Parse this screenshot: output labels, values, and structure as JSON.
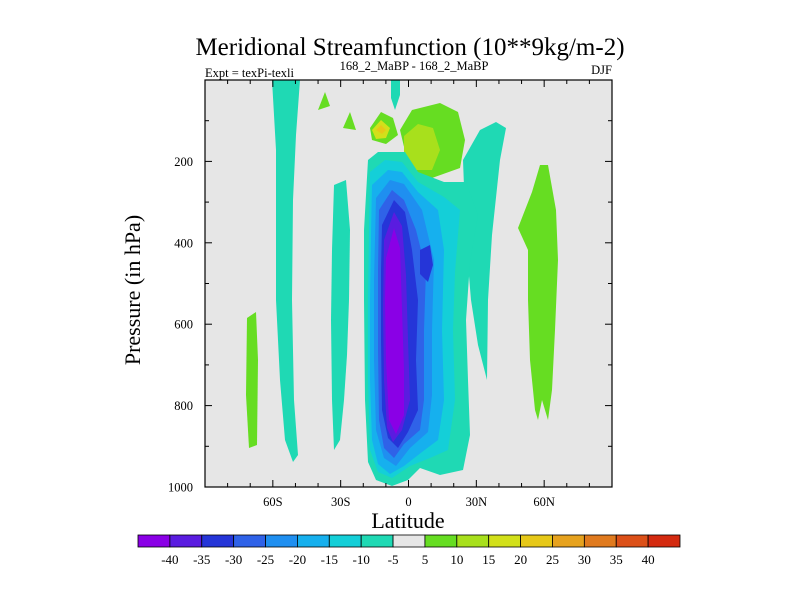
{
  "chart_data": {
    "type": "heatmap",
    "title": "Meridional Streamfunction (10**9kg/m-2)",
    "left_subtitle": "Expt = texPi-texli",
    "center_subtitle": "168_2_MaBP - 168_2_MaBP",
    "right_subtitle": "DJF",
    "xlabel": "Latitude",
    "ylabel": "Pressure (in hPa)",
    "xlim": [
      -90,
      90
    ],
    "ylim": [
      1000,
      0
    ],
    "x_ticks": [
      {
        "value": -60,
        "label": "60S"
      },
      {
        "value": -30,
        "label": "30S"
      },
      {
        "value": 0,
        "label": "0"
      },
      {
        "value": 30,
        "label": "30N"
      },
      {
        "value": 60,
        "label": "60N"
      }
    ],
    "y_ticks": [
      {
        "value": 200,
        "label": "200"
      },
      {
        "value": 400,
        "label": "400"
      },
      {
        "value": 600,
        "label": "600"
      },
      {
        "value": 800,
        "label": "800"
      },
      {
        "value": 1000,
        "label": "1000"
      }
    ],
    "colorbar": {
      "levels": [
        "-40",
        "-35",
        "-30",
        "-25",
        "-20",
        "-15",
        "-10",
        "-5",
        "5",
        "10",
        "15",
        "20",
        "25",
        "30",
        "35",
        "40"
      ],
      "colors": [
        "#8a00e6",
        "#5a1ce0",
        "#2535d8",
        "#2f62e8",
        "#1f8ff0",
        "#16b0ee",
        "#14cfd8",
        "#1fd9b4",
        "#e6e6e6",
        "#66dd22",
        "#a8e01c",
        "#d2e01a",
        "#e6c818",
        "#e6a21e",
        "#e07a1e",
        "#dc5018",
        "#d42a10"
      ]
    },
    "contour_regions": [
      {
        "level": "-10 to -5",
        "description": "broad negative cell -15..15, 120-970 hPa"
      },
      {
        "level": "-40 to -35",
        "description": "core -12..-3, 270-930 hPa"
      },
      {
        "level": "5 to 10",
        "description": "positive cells near 50N-60N 200-870 hPa and 70S 600-900 hPa"
      }
    ]
  }
}
